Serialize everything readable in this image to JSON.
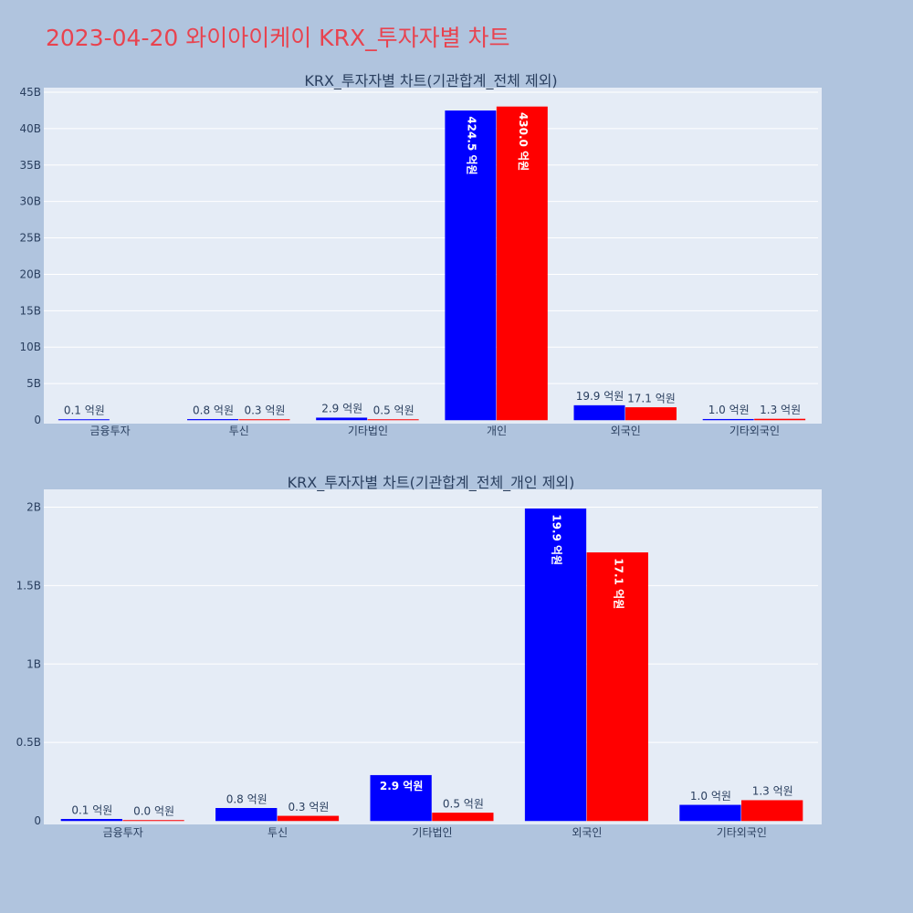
{
  "page": {
    "title": "2023-04-20 와이아이케이 KRX_투자자별 차트"
  },
  "colors": {
    "background": "#b0c4de",
    "plot_bg": "#e5ecf6",
    "grid": "#ffffff",
    "buy": "#0000ff",
    "sell": "#ff0000",
    "title": "#e8434f"
  },
  "chart_data": [
    {
      "type": "bar",
      "title": "KRX_투자자별 차트(기관합계_전체 제외)",
      "categories": [
        "금융투자",
        "투신",
        "기타법인",
        "개인",
        "외국인",
        "기타외국인"
      ],
      "series": [
        {
          "color": "#0000ff",
          "values": [
            0.1,
            0.8,
            2.9,
            424.5,
            19.9,
            1.0
          ],
          "labels": [
            "0.1 억원",
            "0.8 억원",
            "2.9 억원",
            "424.5 억원",
            "19.9 억원",
            "1.0 억원"
          ]
        },
        {
          "color": "#ff0000",
          "values": [
            null,
            0.3,
            0.5,
            430.0,
            17.1,
            1.3
          ],
          "labels": [
            "",
            "0.3 억원",
            "0.5 억원",
            "430.0 억원",
            "17.1 억원",
            "1.3 억원"
          ]
        }
      ],
      "unit_scale": 100000000,
      "ylim": [
        0,
        45000000000
      ],
      "yticks": [
        0,
        5000000000,
        10000000000,
        15000000000,
        20000000000,
        25000000000,
        30000000000,
        35000000000,
        40000000000,
        45000000000
      ],
      "yticklabels": [
        "0",
        "5B",
        "10B",
        "15B",
        "20B",
        "25B",
        "30B",
        "35B",
        "40B",
        "45B"
      ],
      "grid": true
    },
    {
      "type": "bar",
      "title": "KRX_투자자별 차트(기관합계_전체_개인 제외)",
      "categories": [
        "금융투자",
        "투신",
        "기타법인",
        "외국인",
        "기타외국인"
      ],
      "series": [
        {
          "color": "#0000ff",
          "values": [
            0.1,
            0.8,
            2.9,
            19.9,
            1.0
          ],
          "labels": [
            "0.1 억원",
            "0.8 억원",
            "2.9 억원",
            "19.9 억원",
            "1.0 억원"
          ]
        },
        {
          "color": "#ff0000",
          "values": [
            0.0,
            0.3,
            0.5,
            17.1,
            1.3
          ],
          "labels": [
            "0.0 억원",
            "0.3 억원",
            "0.5 억원",
            "17.1 억원",
            "1.3 억원"
          ]
        }
      ],
      "unit_scale": 100000000,
      "ylim": [
        0,
        2100000000
      ],
      "yticks": [
        0,
        500000000,
        1000000000,
        1500000000,
        2000000000
      ],
      "yticklabels": [
        "0",
        "0.5B",
        "1B",
        "1.5B",
        "2B"
      ],
      "grid": true
    }
  ]
}
